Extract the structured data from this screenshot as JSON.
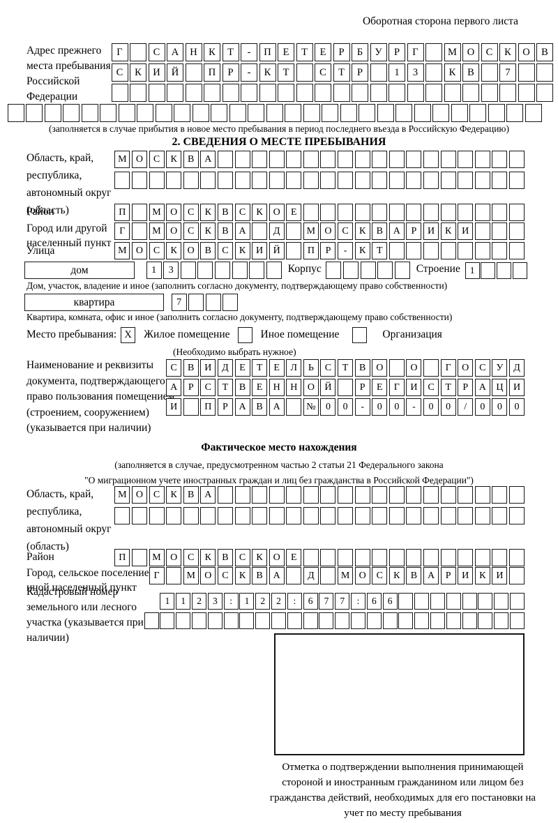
{
  "header": {
    "side_note": "Оборотная сторона первого листа"
  },
  "prev_address": {
    "label": "Адрес прежнего места пребывания в Российской Федерации",
    "rows": [
      {
        "text": "Г САНКТ-ПЕТЕРБУРГ МОСКОВ",
        "len": 24
      },
      {
        "text": "СКИЙ ПР-КТ СТР 13 КВ 7",
        "len": 24
      },
      {
        "text": "",
        "len": 24
      },
      {
        "text": "",
        "len": 29
      }
    ],
    "note": "(заполняется в случае прибытия в новое место пребывания в период последнего въезда в Российскую Федерацию)"
  },
  "section2": {
    "title": "2. СВЕДЕНИЯ О МЕСТЕ ПРЕБЫВАНИЯ",
    "region": {
      "label": "Область, край, республика, автономный округ (область)",
      "rows": [
        {
          "text": "МОСКВА",
          "len": 24
        },
        {
          "text": "",
          "len": 24
        }
      ]
    },
    "district": {
      "label": "Район",
      "row": {
        "text": "П МОСКВСКОЕ",
        "len": 24
      }
    },
    "city": {
      "label": "Город или другой населенный пункт",
      "row": {
        "text": "Г МОСКВА Д МОСКВАРИКИ",
        "len": 24
      }
    },
    "street": {
      "label": "Улица",
      "row": {
        "text": "МОСКОВСКИЙ ПР-КТ",
        "len": 24
      }
    },
    "house": {
      "box_label": "дом",
      "cells": {
        "text": "13",
        "len": 8
      },
      "korpus_label": "Корпус",
      "korpus_cells": {
        "text": "",
        "len": 5
      },
      "stroenie_label": "Строение",
      "stroenie_cells": {
        "text": "1",
        "len": 4
      },
      "note": "Дом, участок, владение и иное (заполнить согласно документу, подтверждающему право собственности)"
    },
    "apartment": {
      "box_label": "квартира",
      "cells": {
        "text": "7",
        "len": 4
      },
      "note": "Квартира, комната, офис и иное (заполнить согласно документу, подтверждающему право собственности)"
    },
    "residence_type": {
      "label": "Место пребывания:",
      "options": [
        {
          "label": "Жилое помещение",
          "mark": "X"
        },
        {
          "label": "Иное помещение",
          "mark": ""
        },
        {
          "label": "Организация",
          "mark": ""
        }
      ],
      "note": "(Необходимо выбрать нужное)"
    },
    "right_document": {
      "label": "Наименование и реквизиты документа, подтверждающего право пользования помещением (строением, сооружением) (указывается при наличии)",
      "rows": [
        {
          "text": "СВИДЕТЕЛЬСТВО О ГОСУД",
          "len": 21
        },
        {
          "text": "АРСТВЕННОЙ РЕГИСТРАЦИ",
          "len": 21
        },
        {
          "text": "И ПРАВА №00-00-00/000",
          "len": 21
        }
      ]
    }
  },
  "actual_location": {
    "title": "Фактическое место нахождения",
    "note_line1": "(заполняется в случае, предусмотренном частью 2 статьи 21 Федерального закона",
    "note_line2": "\"О миграционном учете иностранных граждан и лиц без гражданства в Российской Федерации\")",
    "region": {
      "label": "Область, край, республика, автономный округ (область)",
      "rows": [
        {
          "text": "МОСКВА",
          "len": 24
        },
        {
          "text": "",
          "len": 24
        }
      ]
    },
    "district": {
      "label": "Район",
      "row": {
        "text": "П МОСКВСКОЕ",
        "len": 24
      }
    },
    "city": {
      "label": "Город, сельское поселение, иной населенный пункт",
      "row": {
        "text": "Г МОСКВА Д МОСКВАРИКИ",
        "len": 22
      }
    },
    "cadastre": {
      "label": "Кадастровый номер земельного или лесного участка (указывается при наличии)",
      "rows": [
        {
          "text": "1123:122:677:66",
          "len": 23
        },
        {
          "text": "",
          "len": 24
        }
      ]
    },
    "stamp_caption": "Отметка о подтверждении выполнения принимающей стороной и иностранным гражданином или лицом без гражданства действий, необходимых для его постановки на учет по месту пребывания"
  }
}
